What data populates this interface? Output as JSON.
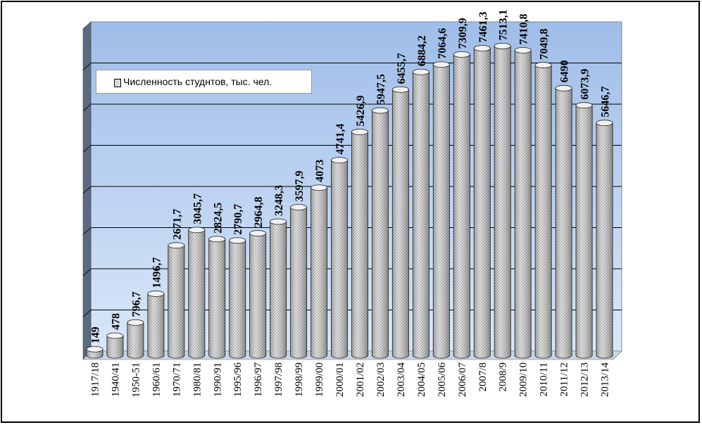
{
  "chart_data": {
    "type": "bar",
    "style": "3d-cylinder",
    "categories": [
      "1917/18",
      "1940/41",
      "1950-51",
      "1960/61",
      "1970/71",
      "1980/81",
      "1990/91",
      "1995/96",
      "1996/97",
      "1997/98",
      "1998/99",
      "1999/00",
      "2000/01",
      "2001/02",
      "2002/03",
      "2003/04",
      "2004/05",
      "2005/06",
      "2006/07",
      "2007/8",
      "2008/9",
      "2009/10",
      "2010/11",
      "2011/12",
      "2012/13",
      "2013/14"
    ],
    "series": [
      {
        "name": "Численность студнтов, тыс. чел.",
        "values": [
          149,
          478,
          796.7,
          1496.7,
          2671.7,
          3045.7,
          2824.5,
          2790.7,
          2964.8,
          3248.3,
          3597.9,
          4073,
          4741.4,
          5426.9,
          5947.5,
          6455.7,
          6884.2,
          7064.6,
          7309.9,
          7461.3,
          7513.1,
          7410.8,
          7049.8,
          6490,
          6073.9,
          5646.7
        ],
        "labels": [
          "149",
          "478",
          "796,7",
          "1496,7",
          "2671,7",
          "3045,7",
          "2824,5",
          "2790,7",
          "2964,8",
          "3248,3",
          "3597,9",
          "4073",
          "4741,4",
          "5426,9",
          "5947,5",
          "6455,7",
          "6884,2",
          "7064,6",
          "7309,9",
          "7461,3",
          "7513,1",
          "7410,8",
          "7049,8",
          "6490",
          "6073,9",
          "5646,7"
        ]
      }
    ],
    "ylim": [
      0,
      8000
    ],
    "grid": true,
    "legend": "top-left",
    "colors": {
      "wall": "#bcd3f3",
      "grid": "#000000",
      "bar": "#dcdcdc"
    }
  }
}
